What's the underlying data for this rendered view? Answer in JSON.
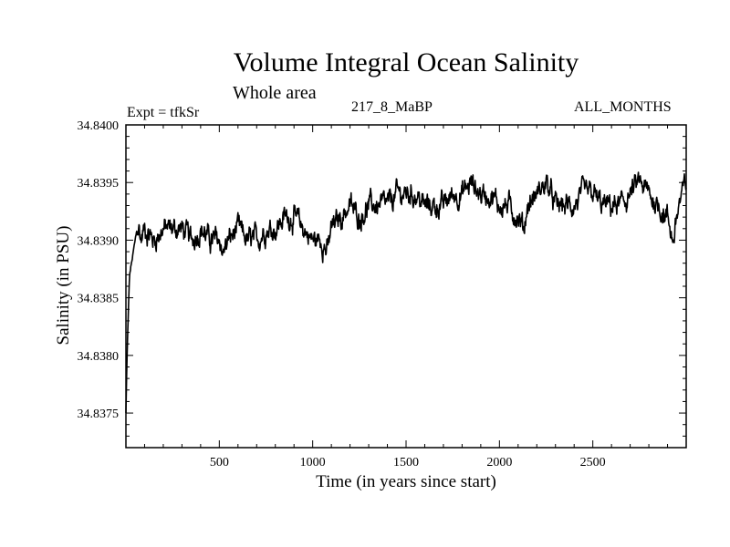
{
  "chart_data": {
    "type": "line",
    "title": "Volume Integral Ocean Salinity",
    "subtitle": "Whole area",
    "experiment_label": "Expt = tfkSr",
    "run_label": "217_8_MaBP",
    "months_label": "ALL_MONTHS",
    "xlabel": "Time (in years since start)",
    "ylabel": "Salinity (in PSU)",
    "xlim": [
      0,
      3000
    ],
    "ylim": [
      34.8372,
      34.84
    ],
    "x_ticks": [
      500,
      1000,
      1500,
      2000,
      2500
    ],
    "x_tick_labels": [
      "500",
      "1000",
      "1500",
      "2000",
      "2500"
    ],
    "y_ticks": [
      34.8375,
      34.838,
      34.8385,
      34.839,
      34.8395,
      34.84
    ],
    "y_tick_labels": [
      "34.8375",
      "34.8380",
      "34.8385",
      "34.8390",
      "34.8395",
      "34.8400"
    ],
    "grid": false,
    "series": [
      {
        "name": "Salinity",
        "x": [
          0,
          5,
          10,
          15,
          20,
          30,
          40,
          50,
          60,
          70,
          80,
          100,
          150,
          200,
          250,
          300,
          350,
          400,
          450,
          500,
          520,
          550,
          600,
          650,
          700,
          750,
          800,
          850,
          900,
          950,
          1000,
          1050,
          1080,
          1100,
          1150,
          1200,
          1250,
          1300,
          1350,
          1400,
          1450,
          1500,
          1550,
          1600,
          1650,
          1700,
          1750,
          1800,
          1850,
          1900,
          1950,
          2000,
          2050,
          2100,
          2130,
          2150,
          2200,
          2250,
          2300,
          2350,
          2400,
          2450,
          2500,
          2550,
          2600,
          2650,
          2700,
          2750,
          2800,
          2850,
          2900,
          2930,
          2960,
          3000
        ],
        "values": [
          34.8375,
          34.8379,
          34.8382,
          34.8385,
          34.8387,
          34.8388,
          34.8389,
          34.839,
          34.8391,
          34.8391,
          34.839,
          34.8391,
          34.839,
          34.8391,
          34.8391,
          34.8391,
          34.839,
          34.8391,
          34.839,
          34.839,
          34.8389,
          34.839,
          34.8391,
          34.839,
          34.839,
          34.8391,
          34.8391,
          34.8392,
          34.8392,
          34.8391,
          34.839,
          34.839,
          34.8389,
          34.8391,
          34.8392,
          34.8393,
          34.8392,
          34.8393,
          34.8393,
          34.8393,
          34.8394,
          34.8394,
          34.8394,
          34.8393,
          34.8393,
          34.8393,
          34.8394,
          34.8394,
          34.8395,
          34.8394,
          34.8394,
          34.8393,
          34.8393,
          34.8392,
          34.8391,
          34.8393,
          34.8394,
          34.8395,
          34.8393,
          34.8393,
          34.8393,
          34.8394,
          34.8394,
          34.8393,
          34.8393,
          34.8393,
          34.8394,
          34.8395,
          34.8394,
          34.8393,
          34.8392,
          34.839,
          34.8393,
          34.8395
        ]
      }
    ]
  }
}
